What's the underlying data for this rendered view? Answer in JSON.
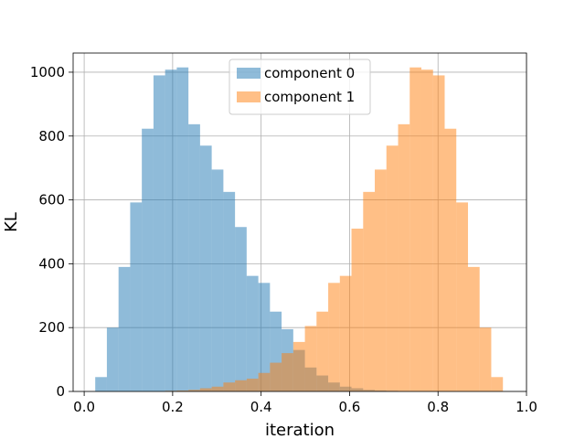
{
  "chart_data": {
    "type": "bar",
    "subtype": "overlapping-histogram",
    "title": "",
    "xlabel": "iteration",
    "ylabel": "KL",
    "xlim": [
      -0.0,
      1.0
    ],
    "ylim": [
      0,
      1060
    ],
    "xticks": [
      "0.0",
      "0.2",
      "0.4",
      "0.6",
      "0.8",
      "1.0"
    ],
    "yticks": [
      "0",
      "200",
      "400",
      "600",
      "800",
      "1000"
    ],
    "grid": true,
    "legend_position": "top-center",
    "bin_edges": [
      0.025,
      0.0513,
      0.0777,
      0.104,
      0.1303,
      0.1567,
      0.183,
      0.2093,
      0.2357,
      0.262,
      0.2883,
      0.3147,
      0.341,
      0.3673,
      0.3937,
      0.42,
      0.4463,
      0.4727,
      0.499,
      0.5253,
      0.5517,
      0.578,
      0.6043,
      0.6307,
      0.657,
      0.6833,
      0.7097,
      0.736,
      0.7623,
      0.7887,
      0.815,
      0.8413,
      0.8677,
      0.894,
      0.9203,
      0.9467,
      0.973
    ],
    "series": [
      {
        "name": "component 0",
        "color": "#1f77b4",
        "alpha": 0.5,
        "values": [
          45,
          200,
          390,
          592,
          823,
          990,
          1008,
          1015,
          837,
          770,
          695,
          625,
          515,
          362,
          340,
          250,
          195,
          130,
          75,
          50,
          28,
          15,
          10,
          5,
          3,
          2,
          0,
          0,
          0,
          0,
          0,
          0,
          0,
          0,
          0,
          0
        ]
      },
      {
        "name": "component 1",
        "color": "#ff7f0e",
        "alpha": 0.5,
        "values": [
          0,
          0,
          0,
          0,
          0,
          0,
          2,
          3,
          5,
          10,
          15,
          28,
          35,
          40,
          58,
          90,
          120,
          155,
          205,
          250,
          340,
          362,
          510,
          625,
          695,
          770,
          837,
          1015,
          1008,
          990,
          823,
          592,
          390,
          200,
          45,
          0
        ]
      }
    ]
  }
}
